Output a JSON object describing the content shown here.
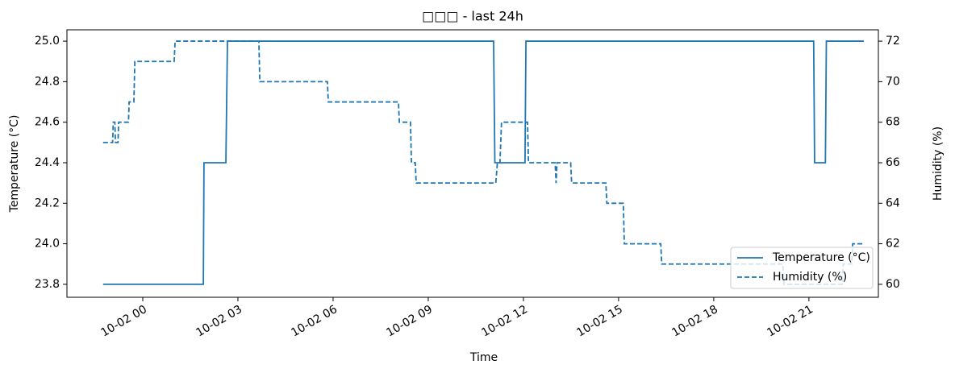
{
  "chart_data": {
    "type": "line",
    "title": "□□□ - last 24h",
    "xlabel": "Time",
    "ylabel": "Temperature (°C)",
    "y2label": "Humidity (%)",
    "xlim": [
      -2.39,
      23.19
    ],
    "xticks": [
      {
        "value": 0,
        "label": "10-02 00"
      },
      {
        "value": 3,
        "label": "10-02 03"
      },
      {
        "value": 6,
        "label": "10-02 06"
      },
      {
        "value": 9,
        "label": "10-02 09"
      },
      {
        "value": 12,
        "label": "10-02 12"
      },
      {
        "value": 15,
        "label": "10-02 15"
      },
      {
        "value": 18,
        "label": "10-02 18"
      },
      {
        "value": 21,
        "label": "10-02 21"
      }
    ],
    "ylim": [
      23.736,
      25.056
    ],
    "yticks": [
      {
        "value": 23.8,
        "label": "23.8"
      },
      {
        "value": 24.0,
        "label": "24.0"
      },
      {
        "value": 24.2,
        "label": "24.2"
      },
      {
        "value": 24.4,
        "label": "24.4"
      },
      {
        "value": 24.6,
        "label": "24.6"
      },
      {
        "value": 24.8,
        "label": "24.8"
      },
      {
        "value": 25.0,
        "label": "25.0"
      }
    ],
    "y2lim": [
      59.36,
      72.56
    ],
    "y2ticks": [
      60,
      62,
      64,
      66,
      68,
      70,
      72
    ],
    "legend": "lower right",
    "series": [
      {
        "name": "Temperature (°C)",
        "color": "#1f77b4",
        "linestyle": "solid",
        "x": [
          -1.25,
          1.91,
          1.93,
          2.62,
          2.67,
          11.06,
          11.1,
          12.05,
          12.08,
          21.15,
          21.18,
          21.52,
          21.55,
          22.73
        ],
        "values": [
          23.8,
          23.8,
          24.4,
          24.4,
          25.0,
          25.0,
          24.4,
          24.4,
          25.0,
          25.0,
          24.4,
          24.4,
          25.0,
          25.0
        ]
      },
      {
        "name": "Humidity (%)",
        "color": "#1f77b4",
        "linestyle": "dashed",
        "axis": "y2",
        "x": [
          -1.25,
          -0.95,
          -0.93,
          -0.88,
          -0.86,
          -0.78,
          -0.76,
          -0.45,
          -0.43,
          -0.28,
          -0.25,
          0.99,
          1.02,
          3.66,
          3.69,
          5.82,
          5.85,
          8.06,
          8.09,
          8.44,
          8.47,
          8.59,
          8.62,
          11.13,
          11.18,
          11.26,
          11.31,
          12.13,
          12.16,
          13.0,
          13.03,
          13.06,
          13.49,
          13.52,
          14.6,
          14.63,
          15.15,
          15.18,
          16.33,
          16.36,
          20.18,
          20.21,
          22.05,
          22.08,
          22.35,
          22.38,
          22.73
        ],
        "values": [
          67,
          67,
          68,
          68,
          67,
          67,
          68,
          68,
          69,
          69,
          71,
          71,
          72,
          72,
          70,
          70,
          69,
          69,
          68,
          68,
          66,
          66,
          65,
          65,
          66,
          66,
          68,
          68,
          66,
          66,
          65,
          66,
          66,
          65,
          65,
          64,
          64,
          62,
          62,
          61,
          61,
          60,
          60,
          61,
          61,
          62,
          62
        ]
      }
    ]
  }
}
